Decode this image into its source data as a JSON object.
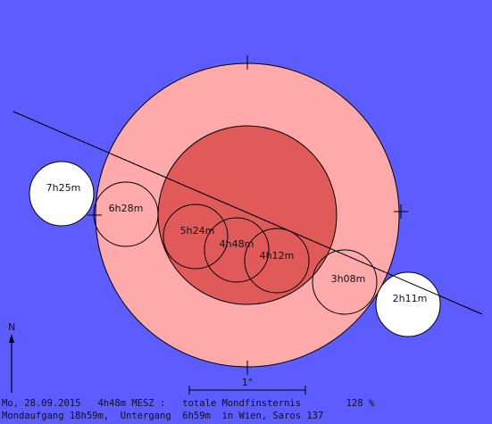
{
  "colors": {
    "background": "#5c5cff",
    "penumbra": "#ffaaaa",
    "umbra": "#e05a5a",
    "moon_bright": "#ffffff",
    "moon_partial": "#ffaaaa",
    "moon_total": "#e05a5a",
    "outline": "#000000"
  },
  "moon_positions": [
    {
      "label": "7h25m",
      "state": "outside"
    },
    {
      "label": "6h28m",
      "state": "penumbra"
    },
    {
      "label": "5h24m",
      "state": "umbra"
    },
    {
      "label": "4h48m",
      "state": "umbra"
    },
    {
      "label": "4h12m",
      "state": "umbra"
    },
    {
      "label": "3h08m",
      "state": "penumbra"
    },
    {
      "label": "2h11m",
      "state": "outside"
    }
  ],
  "north_label": "N",
  "scale_label": "1°",
  "info": {
    "line1": "Mo, 28.09.2015   4h48m MESZ :   totale Mondfinsternis        128 %",
    "line2": "Mondaufgang 18h59m,  Untergang  6h59m  in Wien, Saros 137"
  }
}
